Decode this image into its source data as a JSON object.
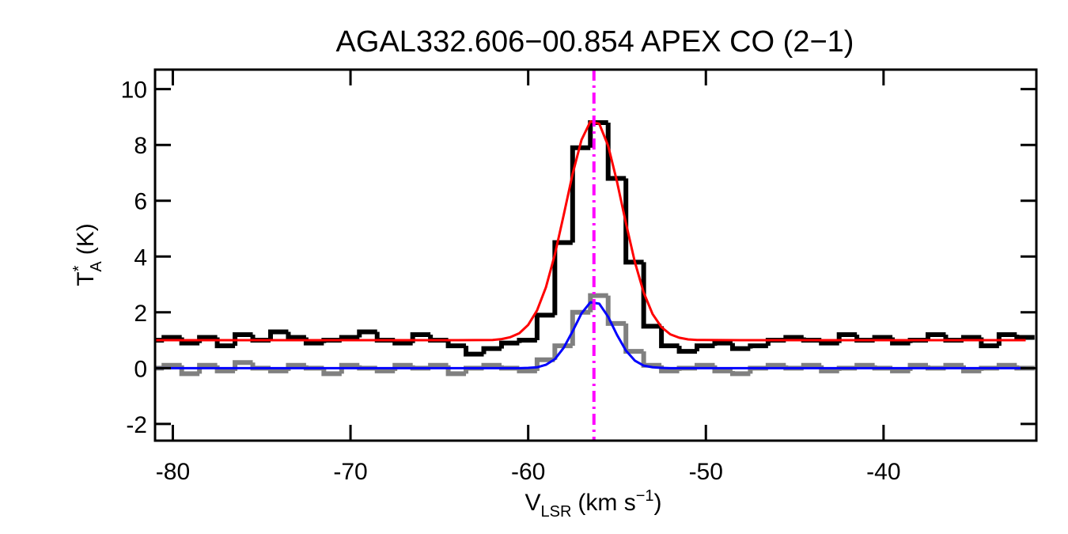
{
  "chart_data": {
    "type": "line",
    "title": "AGAL332.606−00.854  APEX CO (2−1)",
    "xlabel": {
      "symbol": "V",
      "subscript": "LSR",
      "unit": "(km s",
      "superscript": "−1",
      "close": ")"
    },
    "ylabel": {
      "symbol": "T",
      "superscript": "*",
      "subscript": "A",
      "unit": "(K)"
    },
    "xlim": [
      -81,
      -31.4
    ],
    "ylim": [
      -2.6,
      10.7
    ],
    "xticks": [
      -80,
      -70,
      -60,
      -50,
      -40
    ],
    "yticks": [
      -2,
      0,
      2,
      4,
      6,
      8,
      10
    ],
    "vline": {
      "value": -56.3,
      "color": "#ff00ff"
    },
    "series": [
      {
        "color": "#000000",
        "step": true,
        "x": [
          -81,
          -80,
          -79,
          -78,
          -77,
          -76,
          -75,
          -74,
          -73,
          -72,
          -71,
          -70,
          -69,
          -68,
          -67,
          -66,
          -65,
          -64,
          -63,
          -62,
          -61,
          -60,
          -59,
          -58,
          -57,
          -56,
          -55,
          -54,
          -53,
          -52,
          -51,
          -50,
          -49,
          -48,
          -47,
          -46,
          -45,
          -44,
          -43,
          -42,
          -41,
          -40,
          -39,
          -38,
          -37,
          -36,
          -35,
          -34,
          -33,
          -32
        ],
        "values": [
          1.0,
          1.1,
          0.9,
          1.1,
          0.8,
          1.2,
          1.0,
          1.3,
          1.1,
          0.9,
          1.0,
          1.1,
          1.3,
          1.0,
          0.9,
          1.2,
          1.0,
          0.8,
          0.5,
          0.7,
          0.9,
          1.0,
          1.9,
          4.5,
          7.9,
          8.8,
          6.8,
          3.8,
          1.5,
          0.8,
          0.6,
          0.8,
          0.9,
          0.7,
          0.8,
          1.0,
          1.1,
          1.0,
          0.9,
          1.2,
          1.0,
          1.1,
          0.9,
          1.0,
          1.2,
          1.0,
          1.1,
          0.8,
          1.2,
          1.1
        ]
      },
      {
        "color": "#808080",
        "step": true,
        "x": [
          -81,
          -80,
          -79,
          -78,
          -77,
          -76,
          -75,
          -74,
          -73,
          -72,
          -71,
          -70,
          -69,
          -68,
          -67,
          -66,
          -65,
          -64,
          -63,
          -62,
          -61,
          -60,
          -59,
          -58,
          -57,
          -56,
          -55,
          -54,
          -53,
          -52,
          -51,
          -50,
          -49,
          -48,
          -47,
          -46,
          -45,
          -44,
          -43,
          -42,
          -41,
          -40,
          -39,
          -38,
          -37,
          -36,
          -35,
          -34,
          -33,
          -32
        ],
        "values": [
          0.0,
          0.1,
          -0.2,
          0.1,
          -0.1,
          0.2,
          0.0,
          -0.1,
          0.1,
          0.0,
          -0.2,
          0.1,
          0.0,
          -0.1,
          0.1,
          0.0,
          0.1,
          -0.2,
          0.0,
          0.1,
          0.0,
          -0.1,
          0.3,
          0.8,
          2.0,
          2.6,
          1.6,
          0.6,
          0.1,
          -0.1,
          0.0,
          0.1,
          -0.1,
          -0.2,
          0.0,
          0.1,
          0.0,
          0.1,
          -0.1,
          0.0,
          0.1,
          0.0,
          -0.1,
          0.1,
          0.0,
          0.1,
          -0.1,
          0.0,
          0.1,
          0.0
        ]
      },
      {
        "color": "#ff0000",
        "step": false,
        "x": [
          -81,
          -64,
          -62,
          -61.5,
          -61,
          -60.5,
          -60,
          -59.5,
          -59,
          -58.5,
          -58,
          -57.5,
          -57,
          -56.5,
          -56,
          -55.5,
          -55,
          -54.5,
          -54,
          -53.5,
          -53,
          -52.5,
          -52,
          -51.5,
          -51,
          -50.5,
          -48,
          -32
        ],
        "values": [
          1.0,
          1.0,
          1.01,
          1.04,
          1.11,
          1.25,
          1.55,
          2.07,
          2.9,
          4.07,
          5.49,
          6.96,
          8.18,
          8.84,
          8.76,
          7.97,
          6.68,
          5.2,
          3.81,
          2.71,
          1.94,
          1.47,
          1.21,
          1.09,
          1.03,
          1.01,
          1.0,
          1.0
        ]
      },
      {
        "color": "#0000ff",
        "step": false,
        "x": [
          -81,
          -64,
          -62,
          -61.5,
          -61,
          -60.5,
          -60,
          -59.5,
          -59,
          -58.5,
          -58,
          -57.5,
          -57,
          -56.5,
          -56,
          -55.5,
          -55,
          -54.5,
          -54,
          -53.5,
          -53,
          -52.5,
          -52,
          -51.5,
          -51,
          -50.5,
          -48,
          -32
        ],
        "values": [
          0,
          0,
          0,
          0,
          0,
          0,
          0.01,
          0.03,
          0.12,
          0.32,
          0.73,
          1.32,
          1.96,
          2.36,
          2.31,
          1.84,
          1.19,
          0.63,
          0.27,
          0.09,
          0.03,
          0.01,
          0,
          0,
          0,
          0,
          0,
          0
        ]
      }
    ]
  }
}
